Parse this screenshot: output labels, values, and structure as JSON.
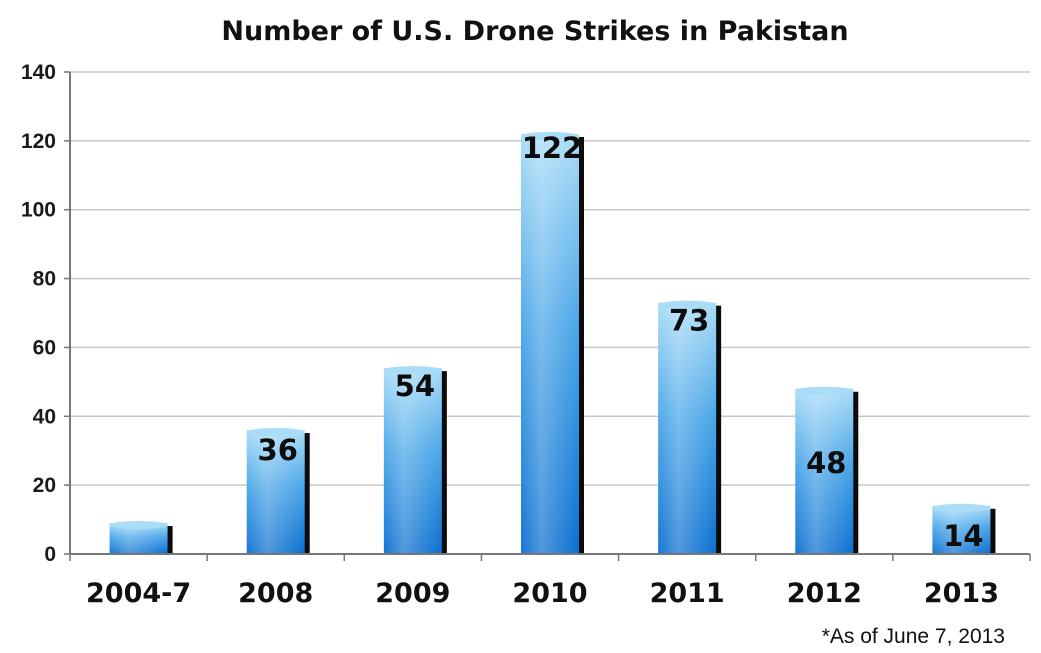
{
  "colors": {
    "bar_top": "#a9dcf7",
    "bar_mid": "#4aa6e8",
    "bar_bottom": "#0a6fd0",
    "bar_shadow": "#0b0b0b",
    "gridline": "#c8c8c8",
    "axis": "#777777"
  },
  "chart_data": {
    "type": "bar",
    "title": "Number of U.S. Drone Strikes in Pakistan",
    "xlabel": "",
    "ylabel": "",
    "categories": [
      "2004-7",
      "2008",
      "2009",
      "2010",
      "2011",
      "2012",
      "2013"
    ],
    "values": [
      9,
      36,
      54,
      122,
      73,
      48,
      14
    ],
    "data_labels": [
      "",
      "36",
      "54",
      "122",
      "73",
      "48",
      "14"
    ],
    "ylim": [
      0,
      140
    ],
    "yticks": [
      0,
      20,
      40,
      60,
      80,
      100,
      120,
      140
    ],
    "grid": true,
    "legend": "none",
    "footnote": "*As of June 7, 2013"
  }
}
